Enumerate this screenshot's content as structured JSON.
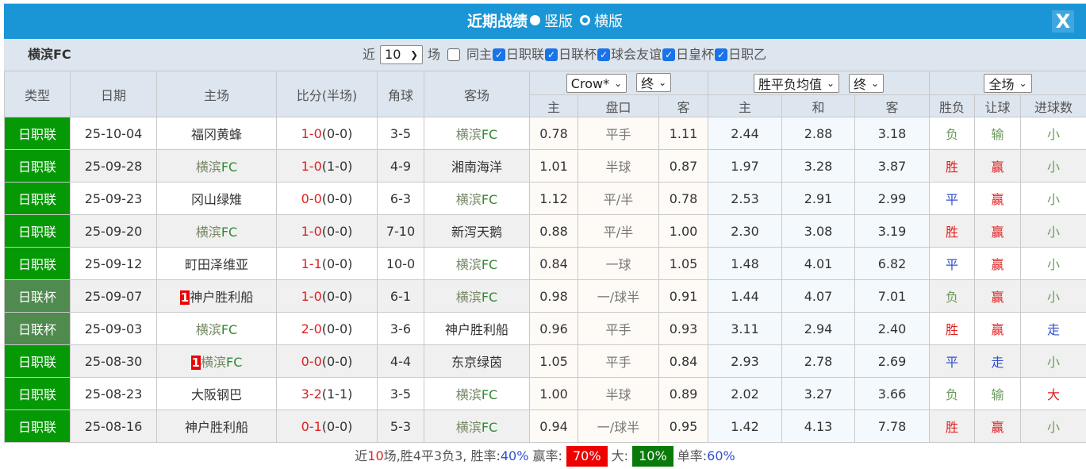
{
  "title": {
    "text": "近期战绩",
    "opt1": "竖版",
    "opt2": "横版",
    "close": "X"
  },
  "team": "横滨FC",
  "filters": {
    "prefix": "近",
    "count": "10",
    "suffix": "场",
    "same_home": "同主",
    "leagues": [
      "日职联",
      "日联杯",
      "球会友谊",
      "日皇杯",
      "日职乙"
    ]
  },
  "selects": {
    "company": "Crow*",
    "stage1": "终",
    "avg": "胜平负均值",
    "stage2": "终",
    "period": "全场"
  },
  "headers": {
    "type": "类型",
    "date": "日期",
    "home": "主场",
    "score": "比分(半场)",
    "corner": "角球",
    "away": "客场",
    "h1": "主",
    "handicap": "盘口",
    "a1": "客",
    "h2": "主",
    "draw": "和",
    "a2": "客",
    "wl": "胜负",
    "ah": "让球",
    "ou": "进球数"
  },
  "colors": {
    "league": "#069906",
    "cup": "#4f8a4f",
    "title_bar": "#1a96d6"
  },
  "rows": [
    {
      "type": "日职联",
      "date": "25-10-04",
      "home": "福冈黄蜂",
      "score": "1-0",
      "half": "(0-0)",
      "corner": "3-5",
      "away": "横滨FC",
      "o1": "0.78",
      "hc": "平手",
      "o2": "1.11",
      "e1": "2.44",
      "e2": "2.88",
      "e3": "3.18",
      "wl": "负",
      "ah": "输",
      "ou": "小"
    },
    {
      "type": "日职联",
      "date": "25-09-28",
      "home": "横滨FC",
      "score": "1-0",
      "half": "(1-0)",
      "corner": "4-9",
      "away": "湘南海洋",
      "o1": "1.01",
      "hc": "半球",
      "o2": "0.87",
      "e1": "1.97",
      "e2": "3.28",
      "e3": "3.87",
      "wl": "胜",
      "ah": "赢",
      "ou": "小"
    },
    {
      "type": "日职联",
      "date": "25-09-23",
      "home": "冈山绿雉",
      "score": "0-0",
      "half": "(0-0)",
      "corner": "6-3",
      "away": "横滨FC",
      "o1": "1.12",
      "hc": "平/半",
      "o2": "0.78",
      "e1": "2.53",
      "e2": "2.91",
      "e3": "2.99",
      "wl": "平",
      "ah": "赢",
      "ou": "小"
    },
    {
      "type": "日职联",
      "date": "25-09-20",
      "home": "横滨FC",
      "score": "1-0",
      "half": "(0-0)",
      "corner": "7-10",
      "away": "新泻天鹅",
      "o1": "0.88",
      "hc": "平/半",
      "o2": "1.00",
      "e1": "2.30",
      "e2": "3.08",
      "e3": "3.19",
      "wl": "胜",
      "ah": "赢",
      "ou": "小"
    },
    {
      "type": "日职联",
      "date": "25-09-12",
      "home": "町田泽维亚",
      "score": "1-1",
      "half": "(0-0)",
      "corner": "10-0",
      "away": "横滨FC",
      "o1": "0.84",
      "hc": "一球",
      "o2": "1.05",
      "e1": "1.48",
      "e2": "4.01",
      "e3": "6.82",
      "wl": "平",
      "ah": "赢",
      "ou": "小"
    },
    {
      "type": "日联杯",
      "date": "25-09-07",
      "home_rank": "1",
      "home": "神户胜利船",
      "score": "1-0",
      "half": "(0-0)",
      "corner": "6-1",
      "away": "横滨FC",
      "o1": "0.98",
      "hc": "一/球半",
      "o2": "0.91",
      "e1": "1.44",
      "e2": "4.07",
      "e3": "7.01",
      "wl": "负",
      "ah": "赢",
      "ou": "小"
    },
    {
      "type": "日联杯",
      "date": "25-09-03",
      "home": "横滨FC",
      "score": "2-0",
      "half": "(0-0)",
      "corner": "3-6",
      "away": "神户胜利船",
      "o1": "0.96",
      "hc": "平手",
      "o2": "0.93",
      "e1": "3.11",
      "e2": "2.94",
      "e3": "2.40",
      "wl": "胜",
      "ah": "赢",
      "ou": "走"
    },
    {
      "type": "日职联",
      "date": "25-08-30",
      "home_rank": "1",
      "home": "横滨FC",
      "score": "0-0",
      "half": "(0-0)",
      "corner": "4-4",
      "away": "东京绿茵",
      "o1": "1.05",
      "hc": "平手",
      "o2": "0.84",
      "e1": "2.93",
      "e2": "2.78",
      "e3": "2.69",
      "wl": "平",
      "ah": "走",
      "ou": "小"
    },
    {
      "type": "日职联",
      "date": "25-08-23",
      "home": "大阪钢巴",
      "score": "3-2",
      "half": "(1-1)",
      "corner": "3-5",
      "away": "横滨FC",
      "o1": "1.00",
      "hc": "半球",
      "o2": "0.89",
      "e1": "2.02",
      "e2": "3.27",
      "e3": "3.66",
      "wl": "负",
      "ah": "输",
      "ou": "大"
    },
    {
      "type": "日职联",
      "date": "25-08-16",
      "home": "神户胜利船",
      "score": "0-1",
      "half": "(0-0)",
      "corner": "5-3",
      "away": "横滨FC",
      "o1": "0.94",
      "hc": "一/球半",
      "o2": "0.95",
      "e1": "1.42",
      "e2": "4.13",
      "e3": "7.78",
      "wl": "胜",
      "ah": "赢",
      "ou": "小"
    }
  ],
  "footer": {
    "p1": "近",
    "n": "10",
    "p2": "场,胜4平3负3, 胜率:",
    "win": "40%",
    "p3": " 赢率:",
    "ahrate": "70%",
    "p4": " 大:",
    "big": "10%",
    "p5": " 单率:",
    "odd": "60%"
  }
}
